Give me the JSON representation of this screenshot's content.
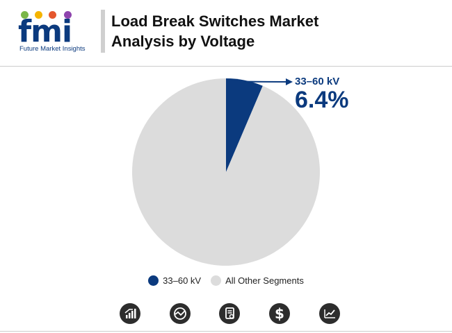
{
  "brand": {
    "logo_letters": "fmi",
    "tagline": "Future Market Insights",
    "colors": {
      "primary": "#0b3a7e",
      "accent1": "#e4572e",
      "accent2": "#f5b400",
      "accent3": "#7ab648",
      "accent4": "#8e44ad"
    }
  },
  "header": {
    "title_line1": "Load Break Switches Market",
    "title_line2": "Analysis by Voltage"
  },
  "chart_data": {
    "type": "pie",
    "slices": [
      {
        "label": "33–60 kV",
        "value": 6.4,
        "color": "#0b3a7e"
      },
      {
        "label": "All Other Segments",
        "value": 93.6,
        "color": "#dcdcdc"
      }
    ],
    "callout": {
      "label": "33–60 kV",
      "value_text": "6.4%"
    },
    "legend_placement": "bottom"
  },
  "footer_icons": [
    "bar-chart-icon",
    "chart-circle-icon",
    "document-icon",
    "dollar-icon",
    "trend-line-icon"
  ]
}
